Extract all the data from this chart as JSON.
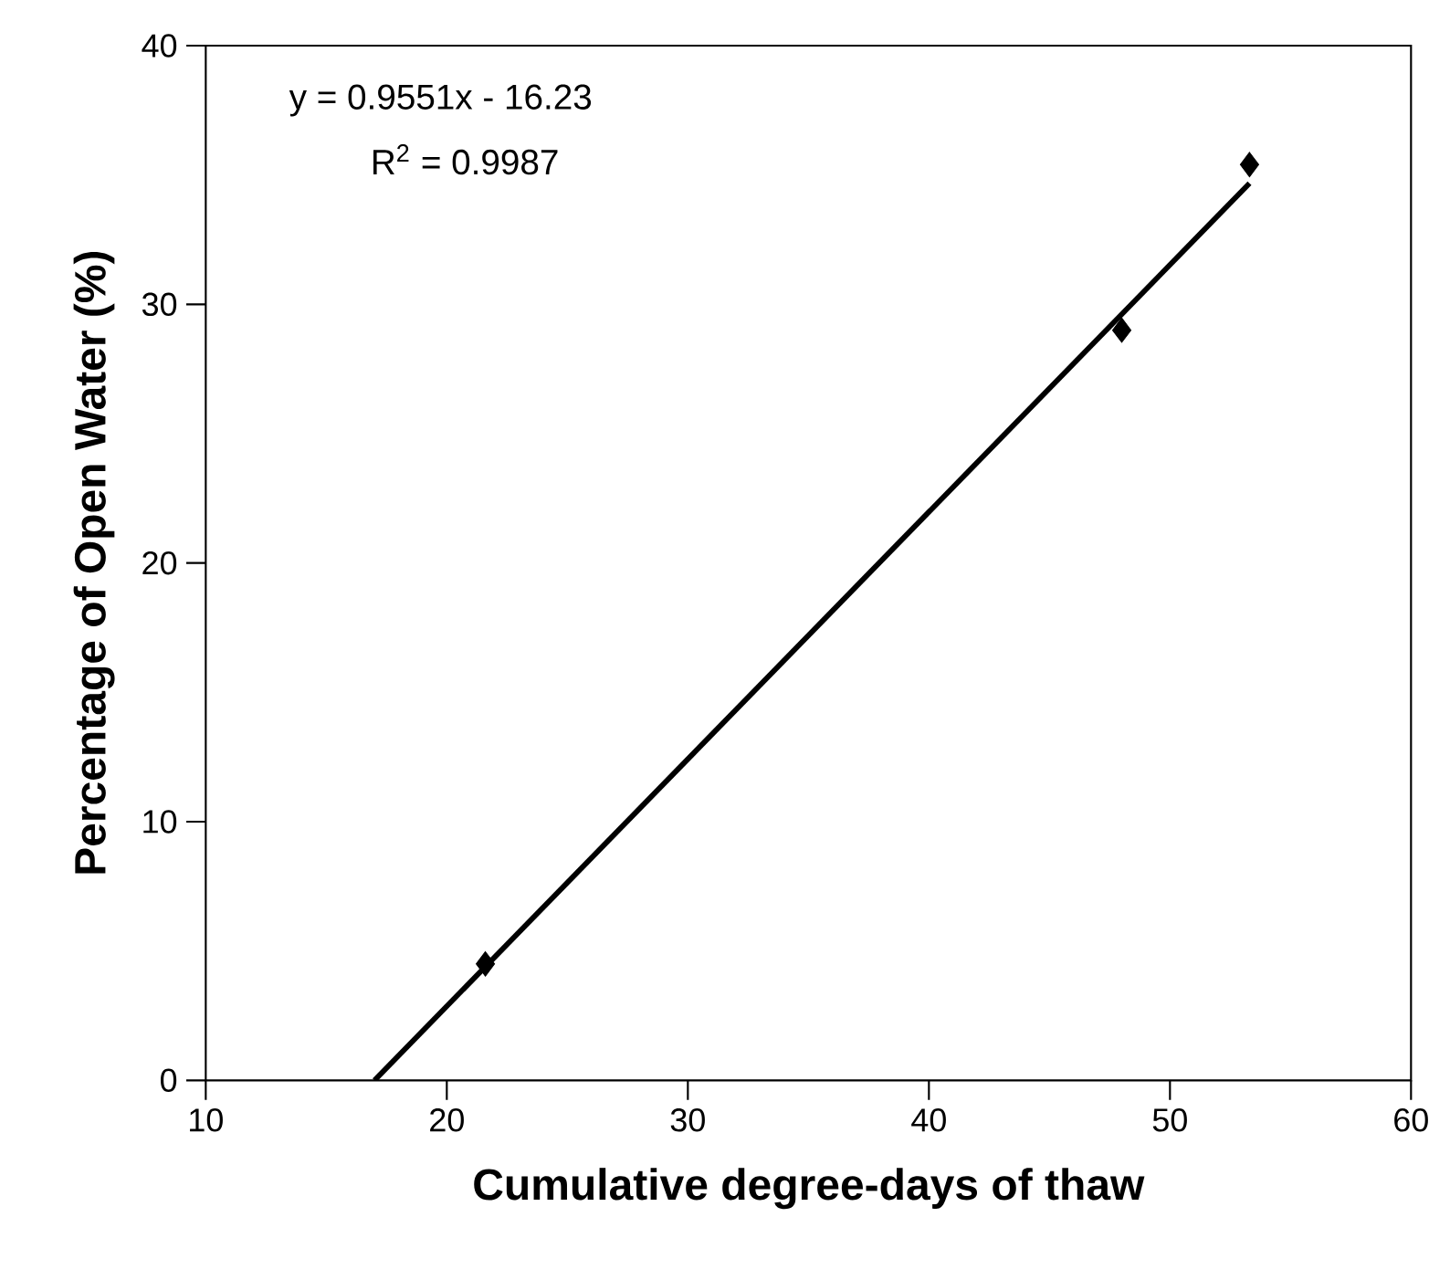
{
  "chart_data": {
    "type": "scatter",
    "xlabel": "Cumulative degree-days of thaw",
    "ylabel": "Percentage of Open Water (%)",
    "series": [
      {
        "color": "#000000",
        "marker": "diamond",
        "x": [
          21.6,
          48.0,
          53.3
        ],
        "values": [
          4.5,
          29.0,
          35.4
        ]
      },
      {
        "type": "line",
        "color": "#000000",
        "line_style": "solid",
        "x": [
          17.0,
          53.3
        ],
        "values": [
          0,
          34.68
        ]
      }
    ],
    "xlim": [
      10,
      60
    ],
    "ylim": [
      0,
      40
    ],
    "xticks": [
      10,
      20,
      30,
      40,
      50,
      60
    ],
    "yticks": [
      0,
      10,
      20,
      30,
      40
    ],
    "annotations": [
      "y = 0.9551x - 16.23",
      "R$^{2}$ = 0.9987"
    ]
  }
}
